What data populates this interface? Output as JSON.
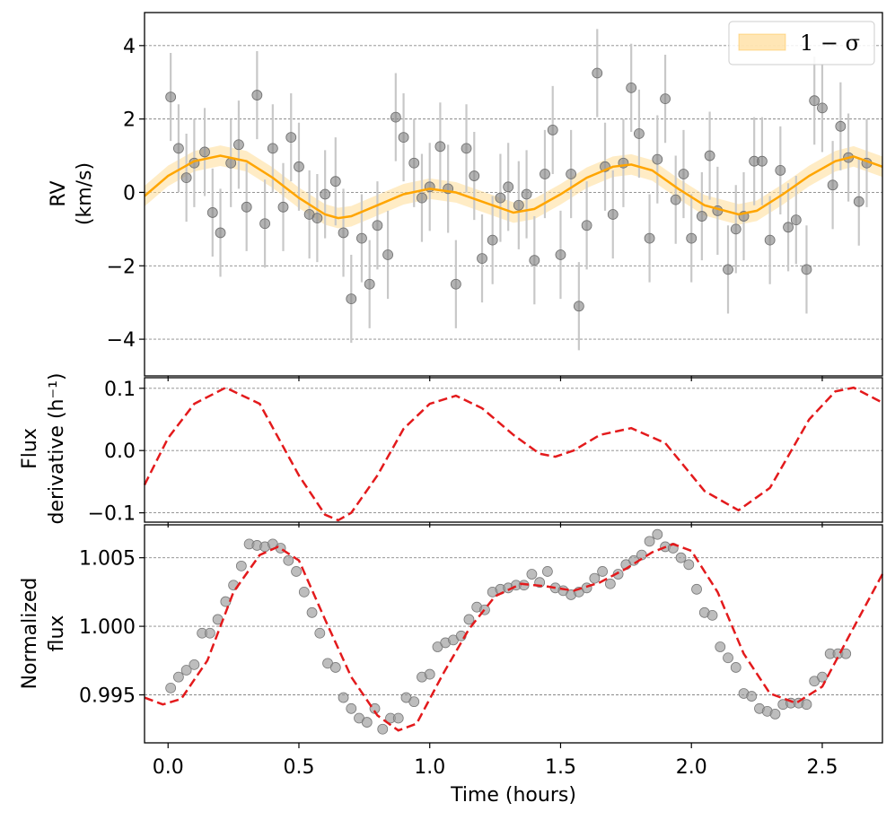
{
  "chart_data": {
    "x_axis": {
      "label": "Time (hours)",
      "range": [
        -0.09,
        2.73
      ],
      "ticks": [
        0.0,
        0.5,
        1.0,
        1.5,
        2.0,
        2.5
      ],
      "tick_labels": [
        "0.0",
        "0.5",
        "1.0",
        "1.5",
        "2.0",
        "2.5"
      ]
    },
    "panels": [
      {
        "type": "line_with_errorbars",
        "ylabel_lines": [
          "RV",
          "(km/s)"
        ],
        "ylim": [
          -5.0,
          4.9
        ],
        "yticks": [
          4,
          2,
          0,
          -2,
          -4
        ],
        "ytick_labels": [
          "4",
          "2",
          "0",
          "−2",
          "−4"
        ],
        "grid": "horizontal dashed",
        "colors": {
          "model": "#ffa500",
          "band": "#ffdc96",
          "points": "#808080",
          "errorbars": "#c8c8c8"
        },
        "legend": {
          "position": "top-right",
          "label": "1 − σ"
        },
        "band_halfwidth": 0.28,
        "model": {
          "x": [
            -0.09,
            0.0,
            0.1,
            0.2,
            0.3,
            0.4,
            0.5,
            0.6,
            0.65,
            0.7,
            0.8,
            0.9,
            1.0,
            1.1,
            1.2,
            1.32,
            1.4,
            1.5,
            1.6,
            1.7,
            1.77,
            1.85,
            1.95,
            2.05,
            2.18,
            2.25,
            2.35,
            2.45,
            2.55,
            2.62,
            2.73
          ],
          "y": [
            -0.1,
            0.45,
            0.85,
            1.0,
            0.85,
            0.4,
            -0.15,
            -0.6,
            -0.7,
            -0.65,
            -0.35,
            -0.05,
            0.1,
            0.0,
            -0.25,
            -0.55,
            -0.45,
            -0.05,
            0.4,
            0.7,
            0.76,
            0.6,
            0.1,
            -0.35,
            -0.6,
            -0.5,
            -0.05,
            0.45,
            0.85,
            0.98,
            0.7
          ]
        },
        "points": [
          {
            "t": 0.01,
            "v": 2.6,
            "err": 1.2
          },
          {
            "t": 0.04,
            "v": 1.2,
            "err": 1.2
          },
          {
            "t": 0.07,
            "v": 0.4,
            "err": 1.2
          },
          {
            "t": 0.1,
            "v": 0.8,
            "err": 1.2
          },
          {
            "t": 0.14,
            "v": 1.1,
            "err": 1.2
          },
          {
            "t": 0.17,
            "v": -0.55,
            "err": 1.2
          },
          {
            "t": 0.2,
            "v": -1.1,
            "err": 1.2
          },
          {
            "t": 0.24,
            "v": 0.8,
            "err": 1.2
          },
          {
            "t": 0.27,
            "v": 1.3,
            "err": 1.2
          },
          {
            "t": 0.3,
            "v": -0.4,
            "err": 1.2
          },
          {
            "t": 0.34,
            "v": 2.65,
            "err": 1.2
          },
          {
            "t": 0.37,
            "v": -0.85,
            "err": 1.2
          },
          {
            "t": 0.4,
            "v": 1.2,
            "err": 1.2
          },
          {
            "t": 0.44,
            "v": -0.4,
            "err": 1.2
          },
          {
            "t": 0.47,
            "v": 1.5,
            "err": 1.2
          },
          {
            "t": 0.5,
            "v": 0.7,
            "err": 1.2
          },
          {
            "t": 0.54,
            "v": -0.6,
            "err": 1.2
          },
          {
            "t": 0.57,
            "v": -0.7,
            "err": 1.2
          },
          {
            "t": 0.6,
            "v": -0.05,
            "err": 1.2
          },
          {
            "t": 0.64,
            "v": 0.3,
            "err": 1.2
          },
          {
            "t": 0.67,
            "v": -1.1,
            "err": 1.2
          },
          {
            "t": 0.7,
            "v": -2.9,
            "err": 1.2
          },
          {
            "t": 0.74,
            "v": -1.25,
            "err": 1.2
          },
          {
            "t": 0.77,
            "v": -2.5,
            "err": 1.2
          },
          {
            "t": 0.8,
            "v": -0.9,
            "err": 1.2
          },
          {
            "t": 0.84,
            "v": -1.7,
            "err": 1.2
          },
          {
            "t": 0.87,
            "v": 2.05,
            "err": 1.2
          },
          {
            "t": 0.9,
            "v": 1.5,
            "err": 1.2
          },
          {
            "t": 0.94,
            "v": 0.8,
            "err": 1.2
          },
          {
            "t": 0.97,
            "v": -0.15,
            "err": 1.2
          },
          {
            "t": 1.0,
            "v": 0.15,
            "err": 1.2
          },
          {
            "t": 1.04,
            "v": 1.25,
            "err": 1.2
          },
          {
            "t": 1.07,
            "v": 0.1,
            "err": 1.2
          },
          {
            "t": 1.1,
            "v": -2.5,
            "err": 1.2
          },
          {
            "t": 1.14,
            "v": 1.2,
            "err": 1.2
          },
          {
            "t": 1.17,
            "v": 0.45,
            "err": 1.2
          },
          {
            "t": 1.2,
            "v": -1.8,
            "err": 1.2
          },
          {
            "t": 1.24,
            "v": -1.3,
            "err": 1.2
          },
          {
            "t": 1.27,
            "v": -0.15,
            "err": 1.2
          },
          {
            "t": 1.3,
            "v": 0.15,
            "err": 1.2
          },
          {
            "t": 1.34,
            "v": -0.35,
            "err": 1.2
          },
          {
            "t": 1.37,
            "v": -0.05,
            "err": 1.2
          },
          {
            "t": 1.4,
            "v": -1.85,
            "err": 1.2
          },
          {
            "t": 1.44,
            "v": 0.5,
            "err": 1.2
          },
          {
            "t": 1.47,
            "v": 1.7,
            "err": 1.2
          },
          {
            "t": 1.5,
            "v": -1.7,
            "err": 1.2
          },
          {
            "t": 1.54,
            "v": 0.5,
            "err": 1.2
          },
          {
            "t": 1.57,
            "v": -3.1,
            "err": 1.2
          },
          {
            "t": 1.6,
            "v": -0.9,
            "err": 1.2
          },
          {
            "t": 1.64,
            "v": 3.25,
            "err": 1.2
          },
          {
            "t": 1.67,
            "v": 0.7,
            "err": 1.2
          },
          {
            "t": 1.7,
            "v": -0.6,
            "err": 1.2
          },
          {
            "t": 1.74,
            "v": 0.8,
            "err": 1.2
          },
          {
            "t": 1.77,
            "v": 2.85,
            "err": 1.2
          },
          {
            "t": 1.8,
            "v": 1.6,
            "err": 1.2
          },
          {
            "t": 1.84,
            "v": -1.25,
            "err": 1.2
          },
          {
            "t": 1.87,
            "v": 0.9,
            "err": 1.2
          },
          {
            "t": 1.9,
            "v": 2.55,
            "err": 1.2
          },
          {
            "t": 1.94,
            "v": -0.2,
            "err": 1.2
          },
          {
            "t": 1.97,
            "v": 0.5,
            "err": 1.2
          },
          {
            "t": 2.0,
            "v": -1.25,
            "err": 1.2
          },
          {
            "t": 2.04,
            "v": -0.65,
            "err": 1.2
          },
          {
            "t": 2.07,
            "v": 1.0,
            "err": 1.2
          },
          {
            "t": 2.1,
            "v": -0.5,
            "err": 1.2
          },
          {
            "t": 2.14,
            "v": -2.1,
            "err": 1.2
          },
          {
            "t": 2.17,
            "v": -1.0,
            "err": 1.2
          },
          {
            "t": 2.2,
            "v": -0.65,
            "err": 1.2
          },
          {
            "t": 2.24,
            "v": 0.85,
            "err": 1.2
          },
          {
            "t": 2.27,
            "v": 0.85,
            "err": 1.2
          },
          {
            "t": 2.3,
            "v": -1.3,
            "err": 1.2
          },
          {
            "t": 2.34,
            "v": 0.6,
            "err": 1.2
          },
          {
            "t": 2.37,
            "v": -0.95,
            "err": 1.2
          },
          {
            "t": 2.4,
            "v": -0.75,
            "err": 1.2
          },
          {
            "t": 2.44,
            "v": -2.1,
            "err": 1.2
          },
          {
            "t": 2.47,
            "v": 2.5,
            "err": 1.2
          },
          {
            "t": 2.5,
            "v": 2.3,
            "err": 1.2
          },
          {
            "t": 2.54,
            "v": 0.2,
            "err": 1.2
          },
          {
            "t": 2.57,
            "v": 1.8,
            "err": 1.2
          },
          {
            "t": 2.6,
            "v": 0.95,
            "err": 1.2
          },
          {
            "t": 2.64,
            "v": -0.25,
            "err": 1.2
          },
          {
            "t": 2.67,
            "v": 0.8,
            "err": 1.2
          }
        ]
      },
      {
        "type": "line",
        "ylabel_lines": [
          "Flux",
          "derivative (h⁻¹)"
        ],
        "ylim": [
          -0.115,
          0.117
        ],
        "yticks": [
          0.1,
          0.0,
          -0.1
        ],
        "ytick_labels": [
          "0.1",
          "0.0",
          "−0.1"
        ],
        "grid": "horizontal dashed",
        "colors": {
          "line": "#e31a1c"
        },
        "series": {
          "name": "flux derivative",
          "style": "dashed",
          "x": [
            -0.09,
            0.0,
            0.1,
            0.22,
            0.35,
            0.5,
            0.6,
            0.65,
            0.7,
            0.8,
            0.9,
            1.0,
            1.1,
            1.2,
            1.32,
            1.42,
            1.48,
            1.55,
            1.65,
            1.77,
            1.9,
            2.05,
            2.18,
            2.3,
            2.45,
            2.55,
            2.62,
            2.73
          ],
          "y": [
            -0.055,
            0.02,
            0.075,
            0.101,
            0.075,
            -0.04,
            -0.103,
            -0.112,
            -0.1,
            -0.04,
            0.035,
            0.075,
            0.088,
            0.068,
            0.025,
            -0.005,
            -0.01,
            0.0,
            0.025,
            0.036,
            0.012,
            -0.065,
            -0.096,
            -0.06,
            0.05,
            0.095,
            0.101,
            0.077
          ]
        }
      },
      {
        "type": "line_scatter",
        "ylabel_lines": [
          "Normalized",
          "flux"
        ],
        "ylim": [
          0.9915,
          1.0074
        ],
        "yticks": [
          1.005,
          1.0,
          0.995
        ],
        "ytick_labels": [
          "1.005",
          "1.000",
          "0.995"
        ],
        "grid": "horizontal dashed",
        "colors": {
          "line": "#e31a1c",
          "points": "#999999"
        },
        "model": {
          "name": "flux model",
          "style": "dashed",
          "x": [
            -0.09,
            -0.02,
            0.05,
            0.15,
            0.25,
            0.35,
            0.42,
            0.5,
            0.6,
            0.7,
            0.8,
            0.88,
            0.95,
            1.05,
            1.15,
            1.25,
            1.35,
            1.45,
            1.55,
            1.65,
            1.75,
            1.85,
            1.93,
            2.0,
            2.1,
            2.2,
            2.3,
            2.4,
            2.5,
            2.6,
            2.73
          ],
          "y": [
            0.9948,
            0.9943,
            0.9947,
            0.9975,
            1.0025,
            1.0052,
            1.0058,
            1.0048,
            1.0005,
            0.9963,
            0.9935,
            0.9924,
            0.9929,
            0.9965,
            0.9998,
            1.0022,
            1.0031,
            1.0029,
            1.0026,
            1.0032,
            1.0042,
            1.0054,
            1.006,
            1.0055,
            1.0025,
            0.998,
            0.9951,
            0.9944,
            0.9956,
            0.9992,
            1.0038
          ]
        },
        "points": {
          "t": [
            0.01,
            0.04,
            0.07,
            0.1,
            0.13,
            0.16,
            0.19,
            0.22,
            0.25,
            0.28,
            0.31,
            0.34,
            0.37,
            0.4,
            0.43,
            0.46,
            0.49,
            0.52,
            0.55,
            0.58,
            0.61,
            0.64,
            0.67,
            0.7,
            0.73,
            0.76,
            0.79,
            0.82,
            0.85,
            0.88,
            0.91,
            0.94,
            0.97,
            1.0,
            1.03,
            1.06,
            1.09,
            1.12,
            1.15,
            1.18,
            1.21,
            1.24,
            1.27,
            1.3,
            1.33,
            1.36,
            1.39,
            1.42,
            1.45,
            1.48,
            1.51,
            1.54,
            1.57,
            1.6,
            1.63,
            1.66,
            1.69,
            1.72,
            1.75,
            1.78,
            1.81,
            1.84,
            1.87,
            1.9,
            1.93,
            1.96,
            1.99,
            2.02,
            2.05,
            2.08,
            2.11,
            2.14,
            2.17,
            2.2,
            2.23,
            2.26,
            2.29,
            2.32,
            2.35,
            2.38,
            2.41,
            2.44,
            2.47,
            2.5,
            2.53,
            2.56,
            2.59
          ],
          "v": [
            0.9955,
            0.9963,
            0.9968,
            0.9972,
            0.9995,
            0.9995,
            1.0005,
            1.0018,
            1.003,
            1.0044,
            1.006,
            1.0059,
            1.0058,
            1.006,
            1.0057,
            1.0048,
            1.004,
            1.0025,
            1.001,
            0.9995,
            0.9973,
            0.997,
            0.9948,
            0.994,
            0.9933,
            0.993,
            0.994,
            0.9925,
            0.9933,
            0.9933,
            0.9948,
            0.9945,
            0.9963,
            0.9965,
            0.9985,
            0.9988,
            0.999,
            0.9993,
            1.0005,
            1.0014,
            1.0012,
            1.0025,
            1.0027,
            1.0028,
            1.003,
            1.003,
            1.0038,
            1.0032,
            1.004,
            1.0028,
            1.0026,
            1.0023,
            1.0025,
            1.0028,
            1.0035,
            1.004,
            1.0031,
            1.0038,
            1.0045,
            1.0048,
            1.0052,
            1.0062,
            1.0067,
            1.0058,
            1.0057,
            1.005,
            1.0045,
            1.0027,
            1.001,
            1.0008,
            0.9985,
            0.9977,
            0.997,
            0.9951,
            0.9949,
            0.994,
            0.9938,
            0.9936,
            0.9943,
            0.9944,
            0.9944,
            0.9943,
            0.996,
            0.9963,
            0.998,
            0.998,
            0.998
          ]
        }
      }
    ]
  }
}
